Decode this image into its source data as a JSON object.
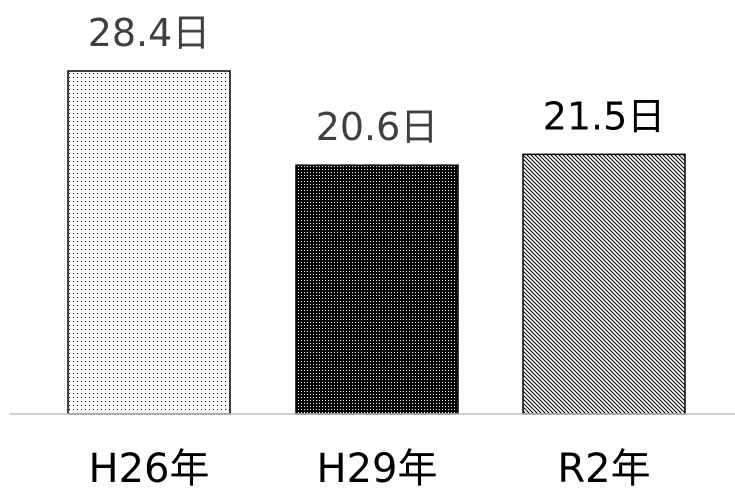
{
  "chart_data": {
    "type": "bar",
    "categories": [
      "H26年",
      "H29年",
      "R2年"
    ],
    "values": [
      28.4,
      20.6,
      21.5
    ],
    "data_labels": [
      "28.4日",
      "20.6日",
      "21.5日"
    ],
    "title": "",
    "xlabel": "",
    "ylabel": "",
    "ylim": [
      0,
      32
    ],
    "grid": false,
    "legend": "none",
    "bar_patterns": [
      "light-dots",
      "dense-dots",
      "diagonal-hatch"
    ],
    "colors": {
      "bar_outline": "#000000",
      "pattern_ink": "#000000",
      "axis_line": "#bfbfbf",
      "label_text": "#404040",
      "tick_text": "#000000"
    }
  }
}
